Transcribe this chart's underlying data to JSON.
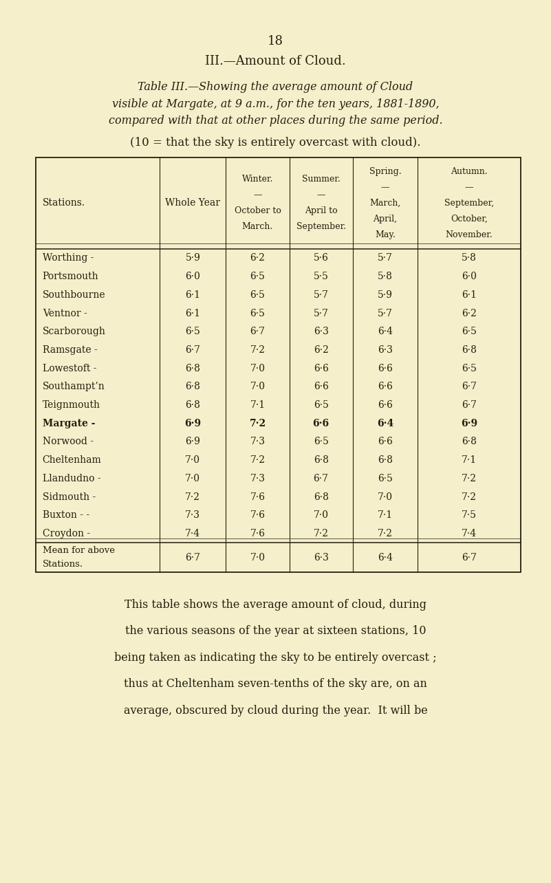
{
  "page_number": "18",
  "section_title": "III.—Amount of Cloud.",
  "caption_line1": "Table III.—Showing the average amount of Cloud",
  "caption_line2": "visible at Margate, at 9 a.m., for the ten years, 1881-1890,",
  "caption_line3": "compared with that at other places during the same period.",
  "subheading": "(10 = that the sky is entirely overcast with cloud).",
  "col_header_0": "Stations.",
  "col_header_1": "Whole Year",
  "col_header_2a": "Winter.",
  "col_header_2b": "October to",
  "col_header_2c": "March.",
  "col_header_3a": "Summer.",
  "col_header_3b": "April to",
  "col_header_3c": "September.",
  "col_header_4a": "Spring.",
  "col_header_4b": "March,",
  "col_header_4c": "April,",
  "col_header_4d": "May.",
  "col_header_5a": "Autumn.",
  "col_header_5b": "September,",
  "col_header_5c": "October,",
  "col_header_5d": "November.",
  "stations": [
    "Worthing -",
    "Portsmouth",
    "Southbourne",
    "Ventnor -",
    "Scarborough",
    "Ramsgate -",
    "Lowestoft -",
    "Southampt’n",
    "Teignmouth",
    "Margate -",
    "Norwood -",
    "Cheltenham",
    "Llandudno -",
    "Sidmouth -",
    "Buxton - -",
    "Croydon -"
  ],
  "margate_index": 9,
  "data": [
    [
      "5·9",
      "6·2",
      "5·6",
      "5·7",
      "5·8"
    ],
    [
      "6·0",
      "6·5",
      "5·5",
      "5·8",
      "6·0"
    ],
    [
      "6·1",
      "6·5",
      "5·7",
      "5·9",
      "6·1"
    ],
    [
      "6·1",
      "6·5",
      "5·7",
      "5·7",
      "6·2"
    ],
    [
      "6·5",
      "6·7",
      "6·3",
      "6·4",
      "6·5"
    ],
    [
      "6·7",
      "7·2",
      "6·2",
      "6·3",
      "6·8"
    ],
    [
      "6·8",
      "7·0",
      "6·6",
      "6·6",
      "6·5"
    ],
    [
      "6·8",
      "7·0",
      "6·6",
      "6·6",
      "6·7"
    ],
    [
      "6·8",
      "7·1",
      "6·5",
      "6·6",
      "6·7"
    ],
    [
      "6·9",
      "7·2",
      "6·6",
      "6·4",
      "6·9"
    ],
    [
      "6·9",
      "7·3",
      "6·5",
      "6·6",
      "6·8"
    ],
    [
      "7·0",
      "7·2",
      "6·8",
      "6·8",
      "7·1"
    ],
    [
      "7·0",
      "7·3",
      "6·7",
      "6·5",
      "7·2"
    ],
    [
      "7·2",
      "7·6",
      "6·8",
      "7·0",
      "7·2"
    ],
    [
      "7·3",
      "7·6",
      "7·0",
      "7·1",
      "7·5"
    ],
    [
      "7·4",
      "7·6",
      "7·2",
      "7·2",
      "7·4"
    ]
  ],
  "mean_label_1": "Mean for above",
  "mean_label_2": "Stations.",
  "mean_data": [
    "6·7",
    "7·0",
    "6·3",
    "6·4",
    "6·7"
  ],
  "footer_line1": "This table shows the average amount of cloud, during",
  "footer_line2": "the various seasons of the year at sixteen stations, 10",
  "footer_line3": "being taken as indicating the sky to be entirely overcast ;",
  "footer_line4": "thus at Cheltenham seven-tenths of the sky are, on an",
  "footer_line5": "average, obscured by cloud during the year.  It will be",
  "bg_color": "#f5efcb",
  "text_color": "#231f0f",
  "dash": "—"
}
